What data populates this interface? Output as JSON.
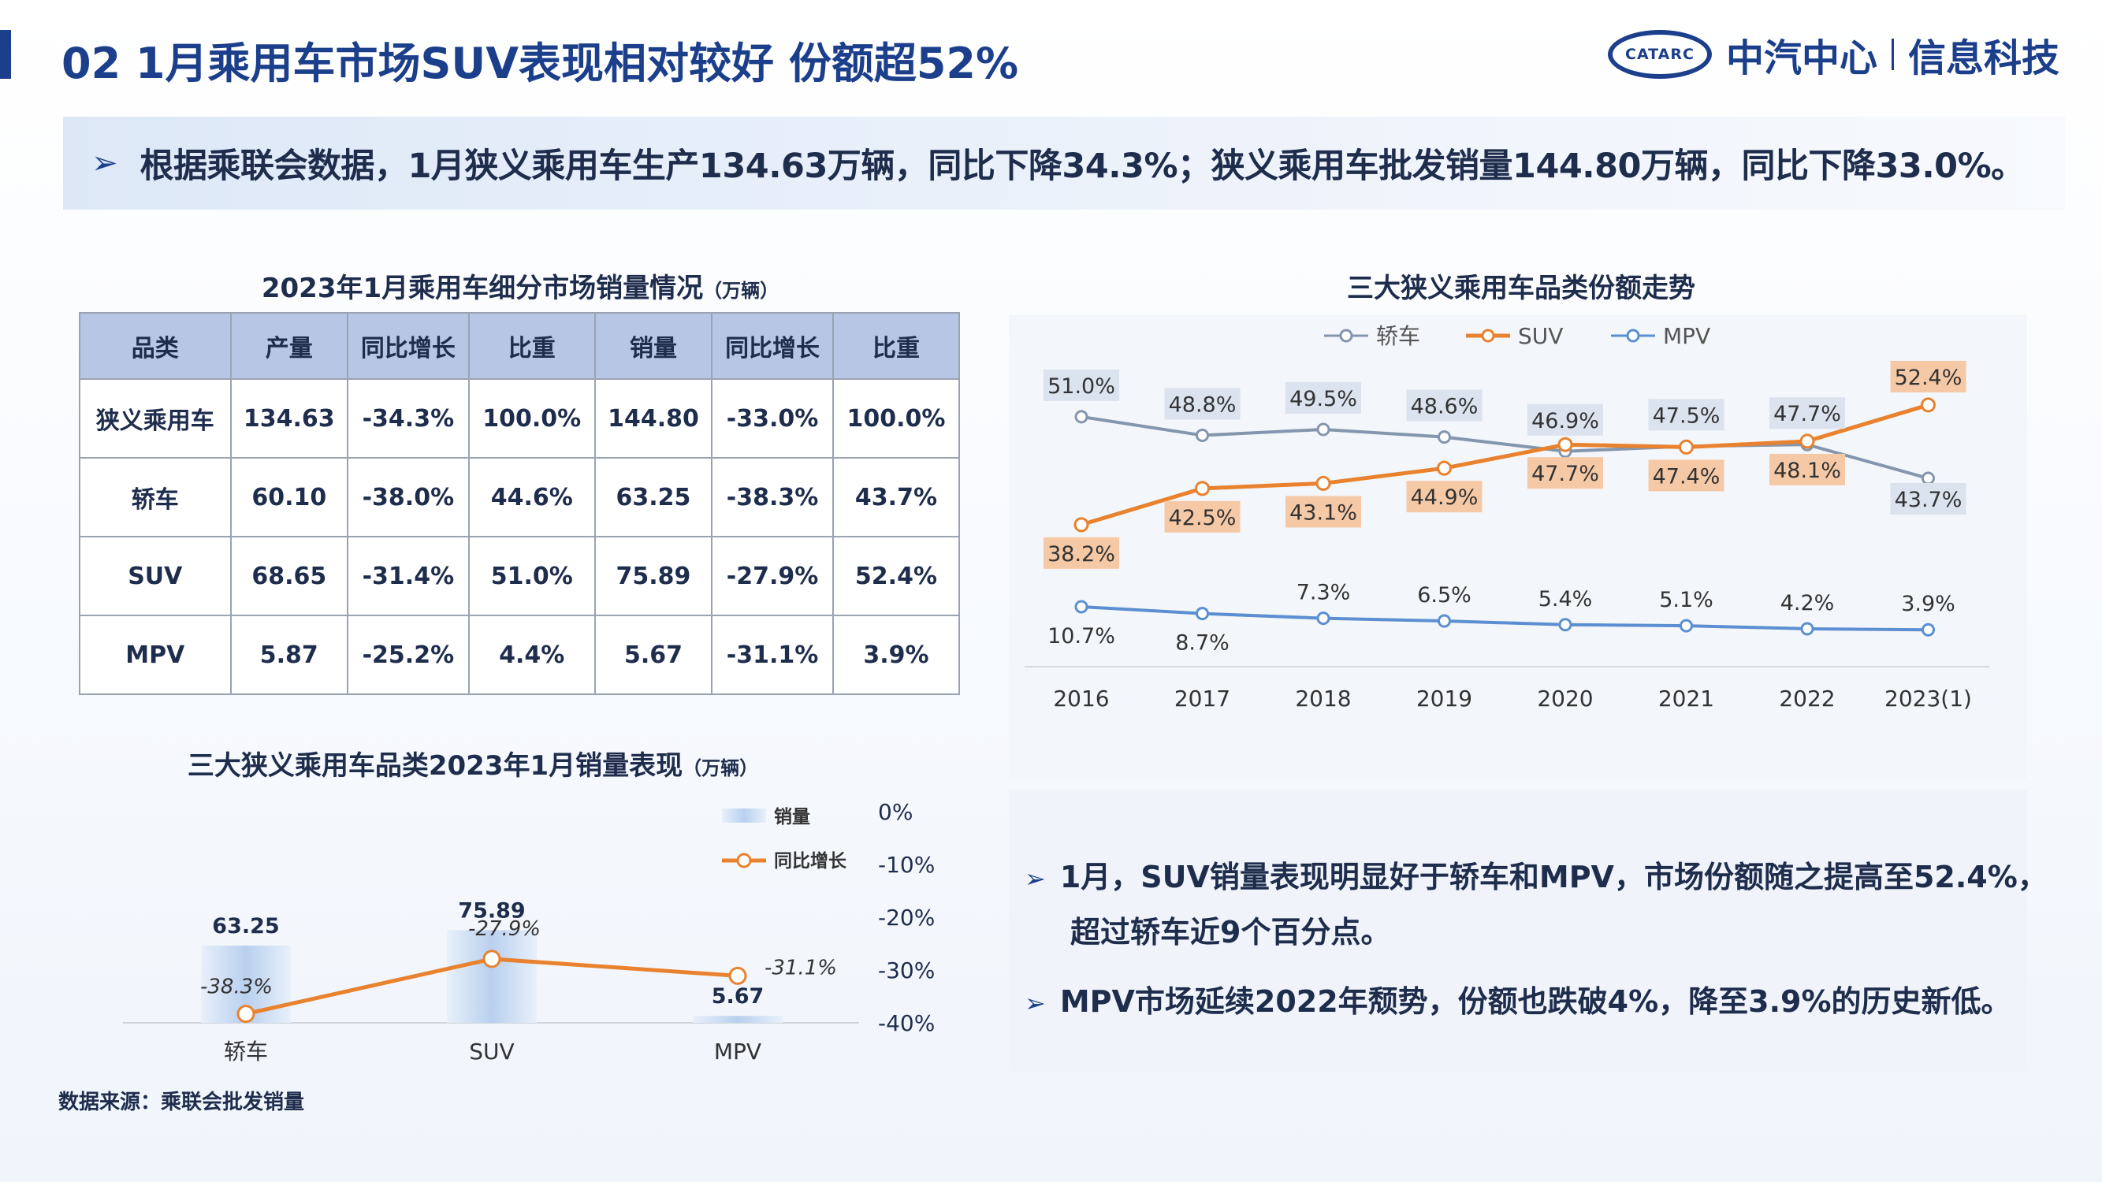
{
  "header": {
    "title": "02  1月乘用车市场SUV表现相对较好 份额超52%",
    "logo_mark": "CATARC",
    "logo_name": "中汽中心",
    "logo_sub": "信息科技"
  },
  "summary": {
    "arrow": "➢",
    "text": "根据乘联会数据，1月狭义乘用车生产134.63万辆，同比下降34.3%；狭义乘用车批发销量144.80万辆，同比下降33.0%。"
  },
  "table": {
    "title": "2023年1月乘用车细分市场销量情况",
    "unit": "（万辆）",
    "headers": [
      "品类",
      "产量",
      "同比增长",
      "比重",
      "销量",
      "同比增长",
      "比重"
    ],
    "rows": [
      [
        "狭义乘用车",
        "134.63",
        "-34.3%",
        "100.0%",
        "144.80",
        "-33.0%",
        "100.0%"
      ],
      [
        "轿车",
        "60.10",
        "-38.0%",
        "44.6%",
        "63.25",
        "-38.3%",
        "43.7%"
      ],
      [
        "SUV",
        "68.65",
        "-31.4%",
        "51.0%",
        "75.89",
        "-27.9%",
        "52.4%"
      ],
      [
        "MPV",
        "5.87",
        "-25.2%",
        "4.4%",
        "5.67",
        "-31.1%",
        "3.9%"
      ]
    ]
  },
  "chart_data": [
    {
      "type": "line",
      "title": "三大狭义乘用车品类份额走势",
      "x": [
        "2016",
        "2017",
        "2018",
        "2019",
        "2020",
        "2021",
        "2022",
        "2023(1)"
      ],
      "series": [
        {
          "name": "轿车",
          "values": [
            51.0,
            48.8,
            49.5,
            48.6,
            46.9,
            47.5,
            47.7,
            43.7
          ],
          "labels": [
            "51.0%",
            "48.8%",
            "49.5%",
            "48.6%",
            "46.9%",
            "47.5%",
            "47.7%",
            "43.7%"
          ]
        },
        {
          "name": "SUV",
          "values": [
            38.2,
            42.5,
            43.1,
            44.9,
            47.7,
            47.4,
            48.1,
            52.4
          ],
          "labels": [
            "38.2%",
            "42.5%",
            "43.1%",
            "44.9%",
            "47.7%",
            "47.4%",
            "48.1%",
            "52.4%"
          ]
        },
        {
          "name": "MPV",
          "values": [
            10.7,
            8.7,
            7.3,
            6.5,
            5.4,
            5.1,
            4.2,
            3.9
          ],
          "labels": [
            "10.7%",
            "8.7%",
            "7.3%",
            "6.5%",
            "5.4%",
            "5.1%",
            "4.2%",
            "3.9%"
          ]
        }
      ],
      "colors": {
        "轿车": "#8496ad",
        "SUV": "#e8822e",
        "MPV": "#5b8fd1"
      },
      "legend": "top-center",
      "grid": false
    },
    {
      "type": "bar",
      "title": "三大狭义乘用车品类2023年1月销量表现",
      "unit": "（万辆）",
      "categories": [
        "轿车",
        "SUV",
        "MPV"
      ],
      "series": [
        {
          "name": "销量",
          "values": [
            63.25,
            75.89,
            5.67
          ],
          "labels": [
            "63.25",
            "75.89",
            "5.67"
          ],
          "axis": "left"
        },
        {
          "name": "同比增长",
          "type": "line",
          "values": [
            -38.3,
            -27.9,
            -31.1
          ],
          "labels": [
            "-38.3%",
            "-27.9%",
            "-31.1%"
          ],
          "axis": "right"
        }
      ],
      "y2_ticks": [
        "0%",
        "-10%",
        "-20%",
        "-30%",
        "-40%"
      ],
      "y2lim": [
        -40,
        0
      ],
      "ylim": [
        0,
        100
      ],
      "legend": "top-right",
      "colors": {
        "bar": "#c9dcf2",
        "line": "#e8822e"
      }
    }
  ],
  "notes": {
    "arrow": "➢",
    "items": [
      {
        "line1": "1月，SUV销量表现明显好于轿车和MPV，市场份额随之提高至52.4%，",
        "line2": "超过轿车近9个百分点。"
      },
      {
        "line1": "MPV市场延续2022年颓势，份额也跌破4%，降至3.9%的历史新低。",
        "line2": ""
      }
    ]
  },
  "source": "数据来源：乘联会批发销量"
}
